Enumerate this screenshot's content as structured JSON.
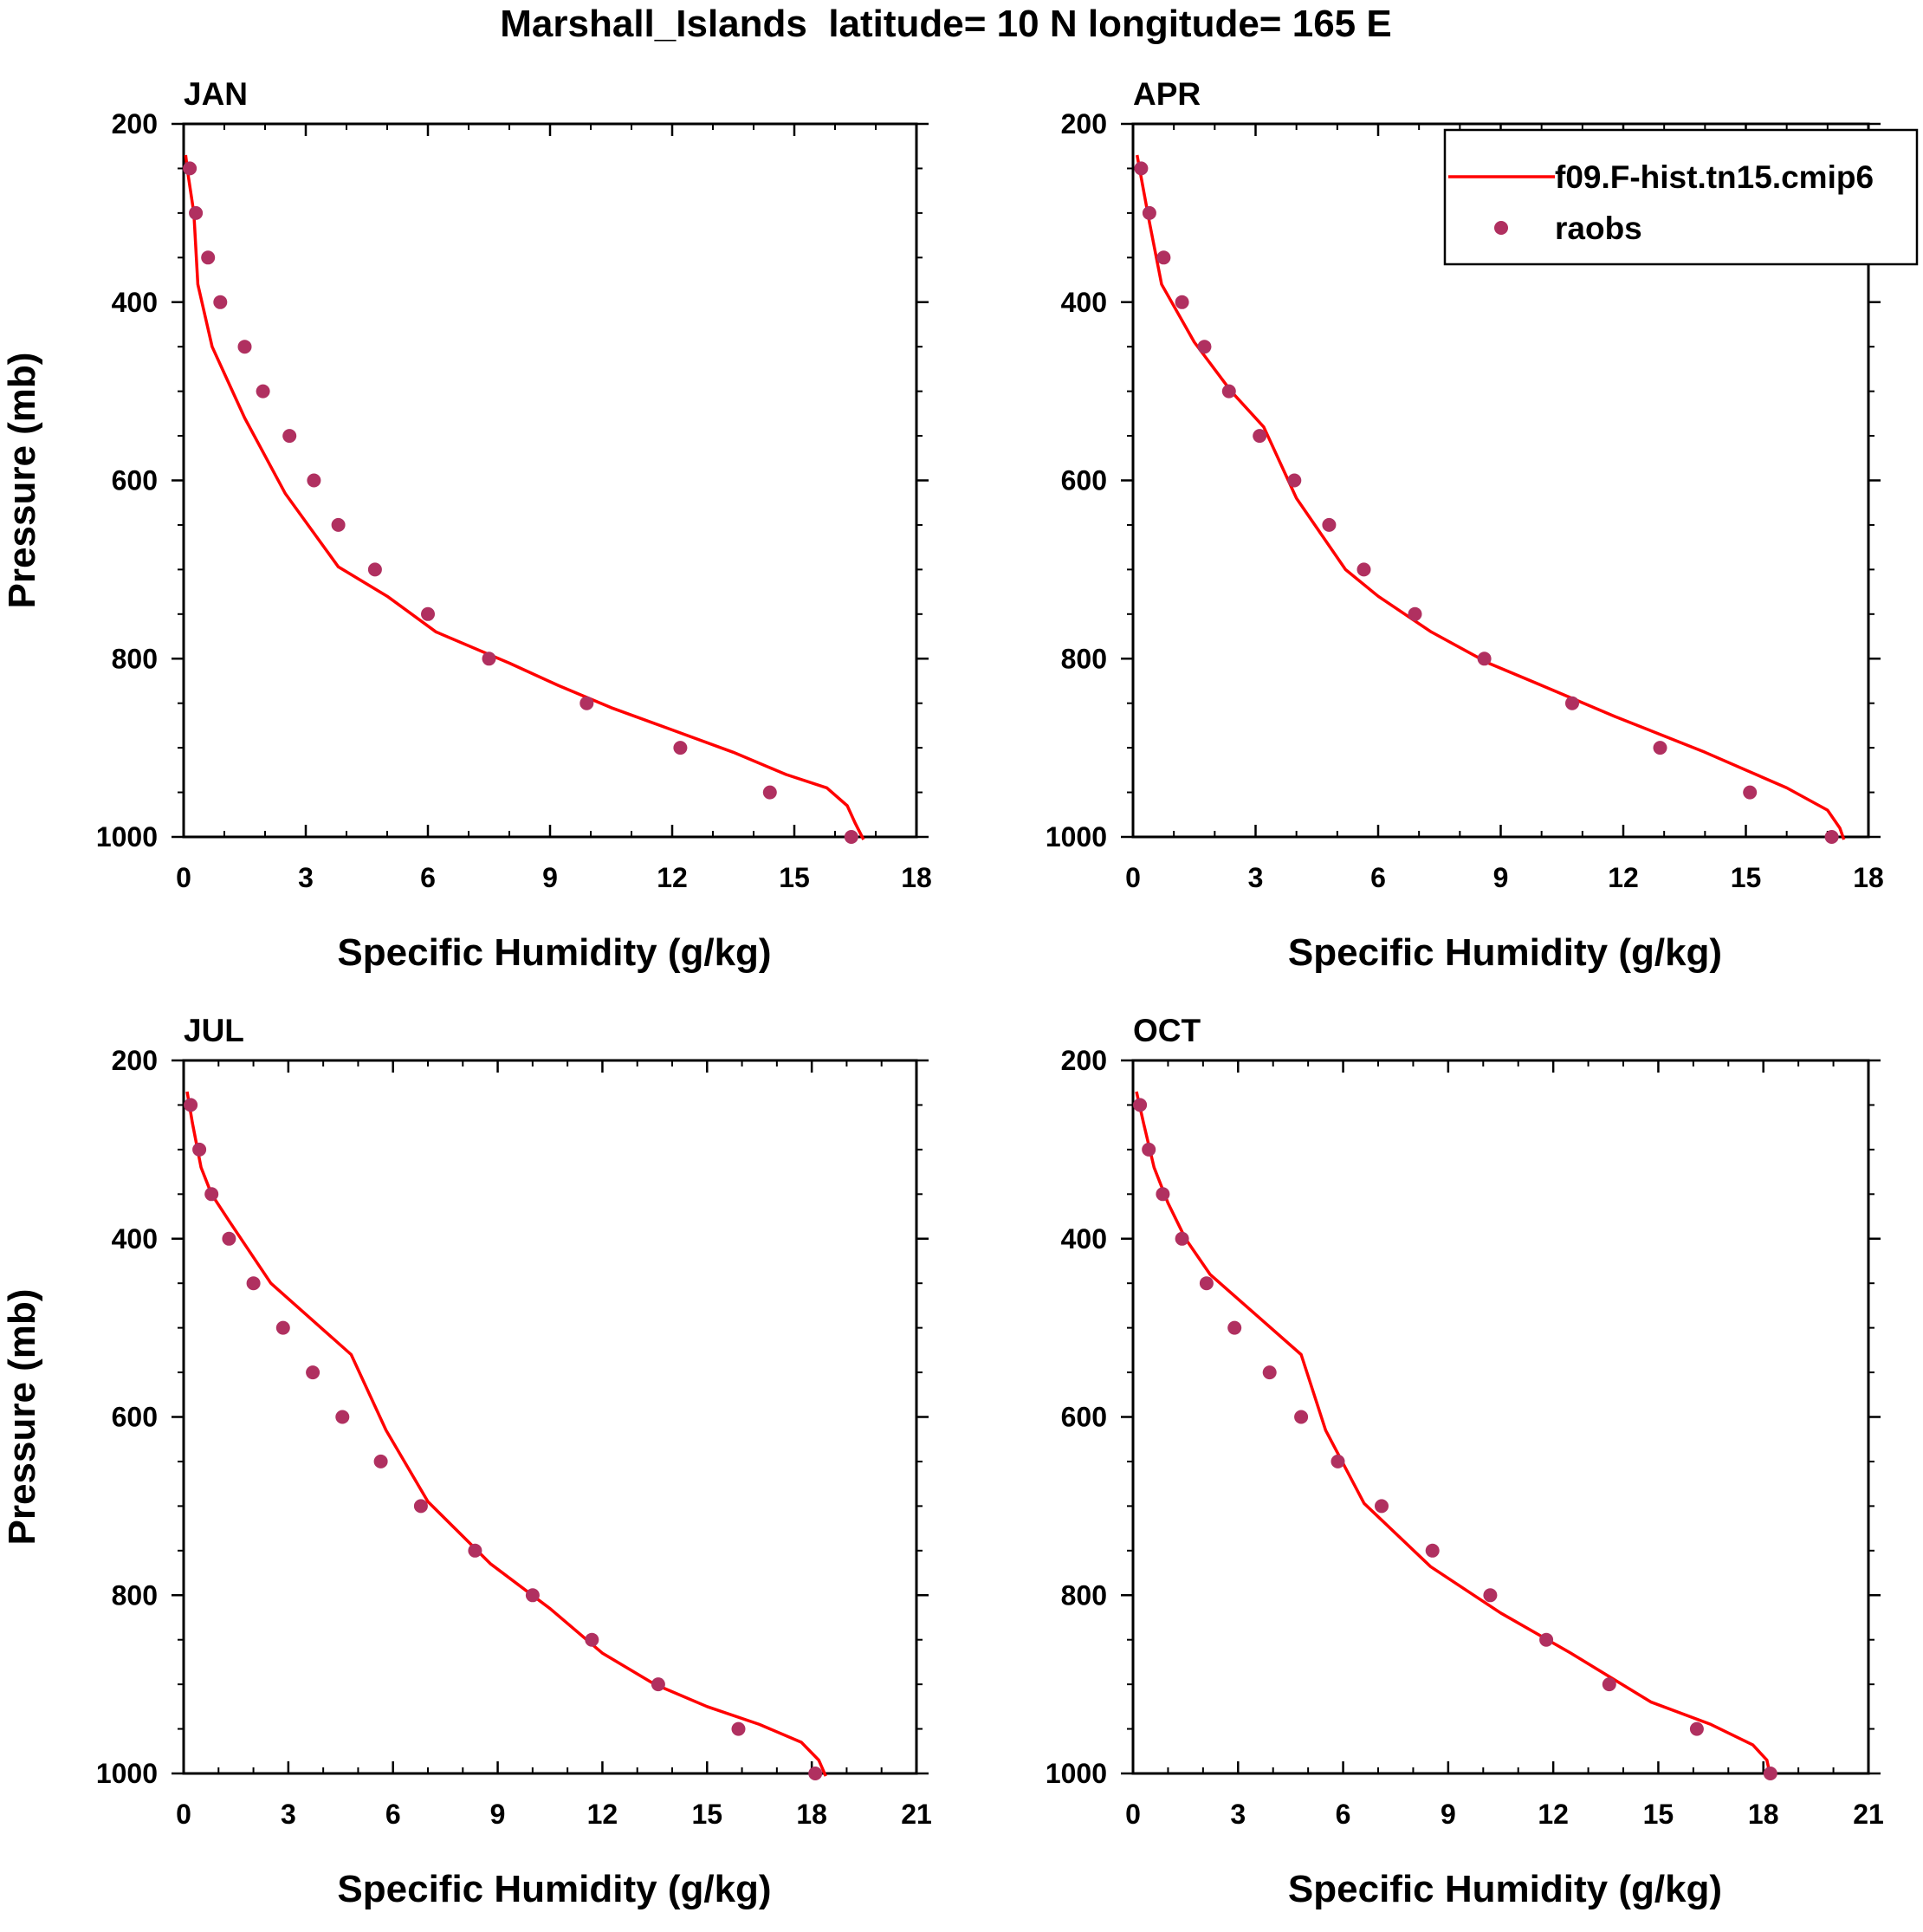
{
  "figure_title": "Marshall_Islands  latitude= 10 N longitude= 165 E",
  "colors": {
    "model": "#ff0000",
    "obs": "#b03060",
    "axes": "#000000"
  },
  "legend": {
    "model_label": "f09.F-hist.tn15.cmip6",
    "obs_label": "raobs"
  },
  "chart_data": [
    {
      "type": "line",
      "panel": "JAN",
      "title": "JAN",
      "xlabel": "Specific Humidity (g/kg)",
      "ylabel": "Pressure (mb)",
      "xlim": [
        0,
        18
      ],
      "ylim": [
        200,
        1000
      ],
      "y_inverted": true,
      "xticks": [
        0,
        3,
        6,
        9,
        12,
        15,
        18
      ],
      "yticks": [
        200,
        400,
        600,
        800,
        1000
      ],
      "series": [
        {
          "name": "f09.F-hist.tn15.cmip6",
          "style": "line",
          "x": [
            0.05,
            0.12,
            0.25,
            0.35,
            0.7,
            1.5,
            2.5,
            3.8,
            5.0,
            6.2,
            8.0,
            9.2,
            10.5,
            12.0,
            13.5,
            14.8,
            15.8,
            16.3,
            16.5,
            16.7
          ],
          "y": [
            235,
            260,
            300,
            380,
            450,
            530,
            615,
            697,
            730,
            770,
            805,
            830,
            855,
            880,
            905,
            930,
            945,
            965,
            985,
            1003
          ]
        },
        {
          "name": "raobs",
          "style": "points",
          "x": [
            0.15,
            0.3,
            0.6,
            0.9,
            1.5,
            1.95,
            2.6,
            3.2,
            3.8,
            4.7,
            6.0,
            7.5,
            9.9,
            12.2,
            14.4,
            16.4
          ],
          "y": [
            250,
            300,
            350,
            400,
            450,
            500,
            550,
            600,
            650,
            700,
            750,
            800,
            850,
            900,
            950,
            1000
          ]
        }
      ]
    },
    {
      "type": "line",
      "panel": "APR",
      "title": "APR",
      "xlabel": "Specific Humidity (g/kg)",
      "ylabel": "",
      "xlim": [
        0,
        18
      ],
      "ylim": [
        200,
        1000
      ],
      "y_inverted": true,
      "xticks": [
        0,
        3,
        6,
        9,
        12,
        15,
        18
      ],
      "yticks": [
        200,
        400,
        600,
        800,
        1000
      ],
      "series": [
        {
          "name": "f09.F-hist.tn15.cmip6",
          "style": "line",
          "x": [
            0.1,
            0.2,
            0.4,
            0.7,
            1.5,
            2.4,
            3.2,
            4.0,
            5.2,
            6.0,
            7.3,
            8.7,
            10.0,
            11.8,
            14.0,
            16.0,
            17.0,
            17.3,
            17.4
          ],
          "y": [
            235,
            260,
            310,
            380,
            445,
            500,
            540,
            620,
            700,
            730,
            770,
            805,
            830,
            865,
            905,
            945,
            970,
            990,
            1003
          ]
        },
        {
          "name": "raobs",
          "style": "points",
          "x": [
            0.2,
            0.4,
            0.75,
            1.2,
            1.75,
            2.35,
            3.1,
            3.95,
            4.8,
            5.65,
            6.9,
            8.6,
            10.75,
            12.9,
            15.1,
            17.1
          ],
          "y": [
            250,
            300,
            350,
            400,
            450,
            500,
            550,
            600,
            650,
            700,
            750,
            800,
            850,
            900,
            950,
            1000
          ]
        }
      ]
    },
    {
      "type": "line",
      "panel": "JUL",
      "title": "JUL",
      "xlabel": "Specific Humidity (g/kg)",
      "ylabel": "Pressure (mb)",
      "xlim": [
        0,
        21
      ],
      "ylim": [
        200,
        1000
      ],
      "y_inverted": true,
      "xticks": [
        0,
        3,
        6,
        9,
        12,
        15,
        18,
        21
      ],
      "yticks": [
        200,
        400,
        600,
        800,
        1000
      ],
      "series": [
        {
          "name": "f09.F-hist.tn15.cmip6",
          "style": "line",
          "x": [
            0.1,
            0.25,
            0.5,
            0.8,
            1.3,
            2.5,
            4.8,
            5.8,
            7.0,
            8.8,
            10.5,
            12.0,
            13.5,
            15.0,
            16.5,
            17.7,
            18.2,
            18.4
          ],
          "y": [
            235,
            270,
            320,
            350,
            380,
            450,
            530,
            615,
            695,
            765,
            815,
            865,
            900,
            925,
            945,
            965,
            985,
            1003
          ]
        },
        {
          "name": "raobs",
          "style": "points",
          "x": [
            0.2,
            0.45,
            0.8,
            1.3,
            2.0,
            2.85,
            3.7,
            4.55,
            5.65,
            6.8,
            8.35,
            10.0,
            11.7,
            13.6,
            15.9,
            18.1
          ],
          "y": [
            250,
            300,
            350,
            400,
            450,
            500,
            550,
            600,
            650,
            700,
            750,
            800,
            850,
            900,
            950,
            1000
          ]
        }
      ]
    },
    {
      "type": "line",
      "panel": "OCT",
      "title": "OCT",
      "xlabel": "Specific Humidity (g/kg)",
      "ylabel": "",
      "xlim": [
        0,
        21
      ],
      "ylim": [
        200,
        1000
      ],
      "y_inverted": true,
      "xticks": [
        0,
        3,
        6,
        9,
        12,
        15,
        18,
        21
      ],
      "yticks": [
        200,
        400,
        600,
        800,
        1000
      ],
      "series": [
        {
          "name": "f09.F-hist.tn15.cmip6",
          "style": "line",
          "x": [
            0.1,
            0.3,
            0.6,
            1.0,
            1.5,
            2.2,
            4.8,
            5.5,
            6.6,
            8.5,
            10.5,
            12.5,
            14.8,
            16.5,
            17.7,
            18.1,
            18.2
          ],
          "y": [
            235,
            270,
            320,
            360,
            400,
            440,
            530,
            615,
            697,
            768,
            820,
            865,
            920,
            945,
            968,
            985,
            1003
          ]
        },
        {
          "name": "raobs",
          "style": "points",
          "x": [
            0.2,
            0.45,
            0.85,
            1.4,
            2.1,
            2.9,
            3.9,
            4.8,
            5.85,
            7.1,
            8.55,
            10.2,
            11.8,
            13.6,
            16.1,
            18.2
          ],
          "y": [
            250,
            300,
            350,
            400,
            450,
            500,
            550,
            600,
            650,
            700,
            750,
            800,
            850,
            900,
            950,
            1000
          ]
        }
      ]
    }
  ]
}
